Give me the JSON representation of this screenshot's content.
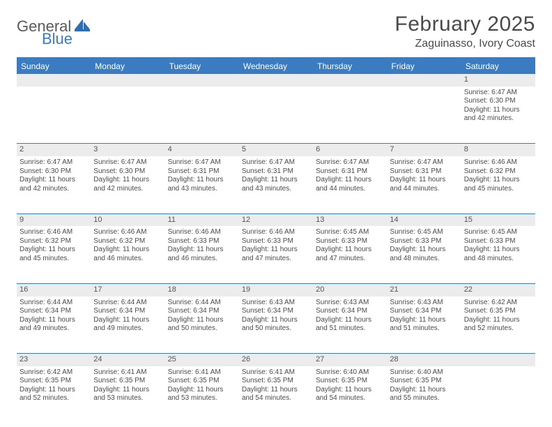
{
  "logo": {
    "word1": "General",
    "word2": "Blue",
    "mark_color": "#2f6fb0"
  },
  "header": {
    "title": "February 2025",
    "location": "Zaguinasso, Ivory Coast"
  },
  "style": {
    "header_bg": "#3b7bbf",
    "header_text": "#ffffff",
    "daynum_bg": "#ececec",
    "row_divider": "#3b7bbf",
    "text_color": "#4a4a4a",
    "page_bg": "#ffffff",
    "title_fontsize": 30,
    "location_fontsize": 16,
    "dayheader_fontsize": 12,
    "cell_fontsize": 10
  },
  "dayHeaders": [
    "Sunday",
    "Monday",
    "Tuesday",
    "Wednesday",
    "Thursday",
    "Friday",
    "Saturday"
  ],
  "weeks": [
    [
      null,
      null,
      null,
      null,
      null,
      null,
      {
        "num": "1",
        "sunrise": "Sunrise: 6:47 AM",
        "sunset": "Sunset: 6:30 PM",
        "daylight": "Daylight: 11 hours and 42 minutes."
      }
    ],
    [
      {
        "num": "2",
        "sunrise": "Sunrise: 6:47 AM",
        "sunset": "Sunset: 6:30 PM",
        "daylight": "Daylight: 11 hours and 42 minutes."
      },
      {
        "num": "3",
        "sunrise": "Sunrise: 6:47 AM",
        "sunset": "Sunset: 6:30 PM",
        "daylight": "Daylight: 11 hours and 42 minutes."
      },
      {
        "num": "4",
        "sunrise": "Sunrise: 6:47 AM",
        "sunset": "Sunset: 6:31 PM",
        "daylight": "Daylight: 11 hours and 43 minutes."
      },
      {
        "num": "5",
        "sunrise": "Sunrise: 6:47 AM",
        "sunset": "Sunset: 6:31 PM",
        "daylight": "Daylight: 11 hours and 43 minutes."
      },
      {
        "num": "6",
        "sunrise": "Sunrise: 6:47 AM",
        "sunset": "Sunset: 6:31 PM",
        "daylight": "Daylight: 11 hours and 44 minutes."
      },
      {
        "num": "7",
        "sunrise": "Sunrise: 6:47 AM",
        "sunset": "Sunset: 6:31 PM",
        "daylight": "Daylight: 11 hours and 44 minutes."
      },
      {
        "num": "8",
        "sunrise": "Sunrise: 6:46 AM",
        "sunset": "Sunset: 6:32 PM",
        "daylight": "Daylight: 11 hours and 45 minutes."
      }
    ],
    [
      {
        "num": "9",
        "sunrise": "Sunrise: 6:46 AM",
        "sunset": "Sunset: 6:32 PM",
        "daylight": "Daylight: 11 hours and 45 minutes."
      },
      {
        "num": "10",
        "sunrise": "Sunrise: 6:46 AM",
        "sunset": "Sunset: 6:32 PM",
        "daylight": "Daylight: 11 hours and 46 minutes."
      },
      {
        "num": "11",
        "sunrise": "Sunrise: 6:46 AM",
        "sunset": "Sunset: 6:33 PM",
        "daylight": "Daylight: 11 hours and 46 minutes."
      },
      {
        "num": "12",
        "sunrise": "Sunrise: 6:46 AM",
        "sunset": "Sunset: 6:33 PM",
        "daylight": "Daylight: 11 hours and 47 minutes."
      },
      {
        "num": "13",
        "sunrise": "Sunrise: 6:45 AM",
        "sunset": "Sunset: 6:33 PM",
        "daylight": "Daylight: 11 hours and 47 minutes."
      },
      {
        "num": "14",
        "sunrise": "Sunrise: 6:45 AM",
        "sunset": "Sunset: 6:33 PM",
        "daylight": "Daylight: 11 hours and 48 minutes."
      },
      {
        "num": "15",
        "sunrise": "Sunrise: 6:45 AM",
        "sunset": "Sunset: 6:33 PM",
        "daylight": "Daylight: 11 hours and 48 minutes."
      }
    ],
    [
      {
        "num": "16",
        "sunrise": "Sunrise: 6:44 AM",
        "sunset": "Sunset: 6:34 PM",
        "daylight": "Daylight: 11 hours and 49 minutes."
      },
      {
        "num": "17",
        "sunrise": "Sunrise: 6:44 AM",
        "sunset": "Sunset: 6:34 PM",
        "daylight": "Daylight: 11 hours and 49 minutes."
      },
      {
        "num": "18",
        "sunrise": "Sunrise: 6:44 AM",
        "sunset": "Sunset: 6:34 PM",
        "daylight": "Daylight: 11 hours and 50 minutes."
      },
      {
        "num": "19",
        "sunrise": "Sunrise: 6:43 AM",
        "sunset": "Sunset: 6:34 PM",
        "daylight": "Daylight: 11 hours and 50 minutes."
      },
      {
        "num": "20",
        "sunrise": "Sunrise: 6:43 AM",
        "sunset": "Sunset: 6:34 PM",
        "daylight": "Daylight: 11 hours and 51 minutes."
      },
      {
        "num": "21",
        "sunrise": "Sunrise: 6:43 AM",
        "sunset": "Sunset: 6:34 PM",
        "daylight": "Daylight: 11 hours and 51 minutes."
      },
      {
        "num": "22",
        "sunrise": "Sunrise: 6:42 AM",
        "sunset": "Sunset: 6:35 PM",
        "daylight": "Daylight: 11 hours and 52 minutes."
      }
    ],
    [
      {
        "num": "23",
        "sunrise": "Sunrise: 6:42 AM",
        "sunset": "Sunset: 6:35 PM",
        "daylight": "Daylight: 11 hours and 52 minutes."
      },
      {
        "num": "24",
        "sunrise": "Sunrise: 6:41 AM",
        "sunset": "Sunset: 6:35 PM",
        "daylight": "Daylight: 11 hours and 53 minutes."
      },
      {
        "num": "25",
        "sunrise": "Sunrise: 6:41 AM",
        "sunset": "Sunset: 6:35 PM",
        "daylight": "Daylight: 11 hours and 53 minutes."
      },
      {
        "num": "26",
        "sunrise": "Sunrise: 6:41 AM",
        "sunset": "Sunset: 6:35 PM",
        "daylight": "Daylight: 11 hours and 54 minutes."
      },
      {
        "num": "27",
        "sunrise": "Sunrise: 6:40 AM",
        "sunset": "Sunset: 6:35 PM",
        "daylight": "Daylight: 11 hours and 54 minutes."
      },
      {
        "num": "28",
        "sunrise": "Sunrise: 6:40 AM",
        "sunset": "Sunset: 6:35 PM",
        "daylight": "Daylight: 11 hours and 55 minutes."
      },
      null
    ]
  ]
}
